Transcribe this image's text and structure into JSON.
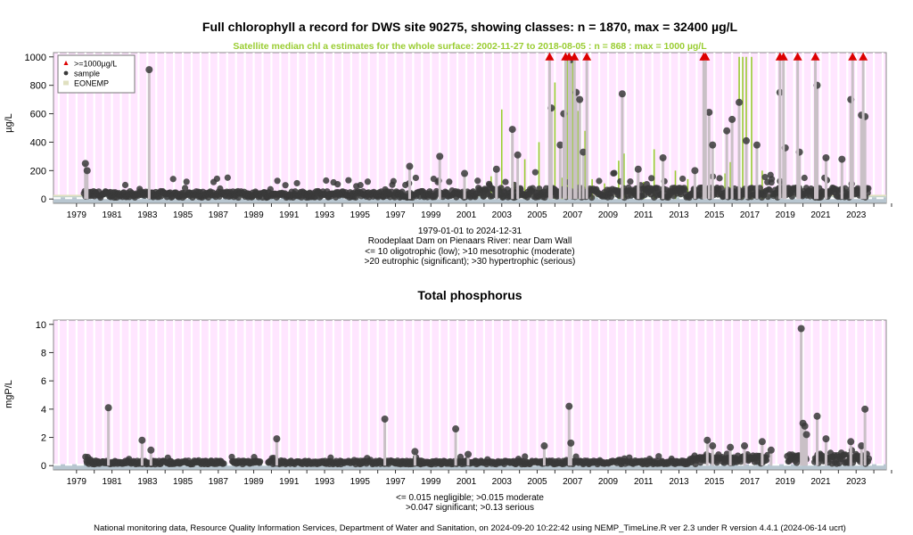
{
  "chart_data": [
    {
      "type": "scatter",
      "title": "Full chlorophyll a record for DWS site 90275, showing classes: n = 1870, max = 32400 µg/L",
      "subtitle": "Satellite median chl a estimates for the whole surface: 2002-11-27 to 2018-08-05 : n = 868 : max = 1000 µg/L",
      "ylabel": "µg/L",
      "xlim": [
        1978.2,
        2025.2
      ],
      "ylim": [
        -30,
        1030
      ],
      "x_ticks": [
        "1979",
        "1981",
        "1983",
        "1985",
        "1987",
        "1989",
        "1991",
        "1993",
        "1995",
        "1997",
        "1999",
        "2001",
        "2003",
        "2005",
        "2007",
        "2009",
        "2011",
        "2013",
        "2015",
        "2017",
        "2019",
        "2021",
        "2023"
      ],
      "y_ticks": [
        0,
        200,
        400,
        600,
        800,
        1000
      ],
      "legend": {
        "position": "top-left",
        "entries": [
          ">=1000µg/L",
          "sample",
          "EONEMP"
        ]
      },
      "colors": {
        "panel_bg": "#ffe6ff",
        "sample": "#3a3a3a",
        "exceed": "#dd0000",
        "eonemp": "#99cc33",
        "stem": "#c9c0c6",
        "bands": [
          "#b8c6d0",
          "#c3d4cc",
          "#e0e0c0"
        ]
      },
      "series": [
        {
          "name": ">=1000µg/L",
          "x": [
            2006.2,
            2007.1,
            2007.3,
            2007.6,
            2008.3,
            2014.9,
            2015.0,
            2019.2,
            2019.4,
            2020.2,
            2021.2,
            2023.3,
            2023.9
          ],
          "y": [
            1000,
            1000,
            1000,
            1000,
            1000,
            1000,
            1000,
            1000,
            1000,
            1000,
            1000,
            1000,
            1000
          ]
        },
        {
          "name": "sample",
          "x": [
            1980.0,
            1980.1,
            1983.6,
            1998.3,
            2000.0,
            2001.4,
            2003.2,
            2004.1,
            2004.4,
            2006.3,
            2006.8,
            2007.0,
            2007.4,
            2007.7,
            2007.9,
            2008.1,
            2010.3,
            2011.2,
            2012.6,
            2014.4,
            2015.2,
            2015.4,
            2016.2,
            2016.5,
            2016.9,
            2017.3,
            2017.9,
            2019.2,
            2019.5,
            2020.3,
            2021.3,
            2021.8,
            2022.7,
            2023.2,
            2023.8,
            2024.0
          ],
          "y": [
            250,
            200,
            910,
            230,
            300,
            180,
            210,
            490,
            310,
            640,
            380,
            600,
            980,
            750,
            700,
            330,
            740,
            210,
            290,
            200,
            610,
            380,
            480,
            560,
            680,
            410,
            380,
            750,
            360,
            330,
            800,
            290,
            280,
            700,
            590,
            580
          ]
        },
        {
          "name": "EONEMP",
          "x": [
            2002.9,
            2003.5,
            2004.2,
            2004.8,
            2005.6,
            2006.2,
            2006.5,
            2006.9,
            2007.2,
            2007.5,
            2007.8,
            2008.2,
            2008.6,
            2009.3,
            2010.1,
            2010.4,
            2011.5,
            2012.1,
            2013.3,
            2014.0,
            2016.1,
            2016.4,
            2016.9,
            2017.1,
            2017.3,
            2017.6,
            2018.2
          ],
          "y": [
            160,
            630,
            120,
            280,
            400,
            1000,
            820,
            150,
            1000,
            970,
            620,
            480,
            140,
            110,
            270,
            320,
            120,
            350,
            200,
            140,
            180,
            260,
            1000,
            1000,
            1000,
            1000,
            200
          ]
        }
      ]
    },
    {
      "type": "scatter",
      "title": "Total phosphorus",
      "ylabel": "mgP/L",
      "xlim": [
        1978.2,
        2025.2
      ],
      "ylim": [
        -0.3,
        10.3
      ],
      "x_ticks": [
        "1979",
        "1981",
        "1983",
        "1985",
        "1987",
        "1989",
        "1991",
        "1993",
        "1995",
        "1997",
        "1999",
        "2001",
        "2003",
        "2005",
        "2007",
        "2009",
        "2011",
        "2013",
        "2015",
        "2017",
        "2019",
        "2021",
        "2023"
      ],
      "y_ticks": [
        0,
        2,
        4,
        6,
        8,
        10
      ],
      "colors": {
        "panel_bg": "#ffe6ff",
        "sample": "#3a3a3a",
        "stem": "#c9c0c6"
      },
      "series": [
        {
          "name": "sample",
          "x": [
            1981.3,
            1983.2,
            1983.7,
            1990.8,
            1996.9,
            1998.6,
            2000.9,
            2001.6,
            2005.9,
            2007.3,
            2007.4,
            2015.1,
            2015.4,
            2016.4,
            2017.2,
            2018.2,
            2018.7,
            2020.4,
            2020.5,
            2020.6,
            2020.7,
            2021.3,
            2021.8,
            2023.2,
            2023.8,
            2024.0
          ],
          "y": [
            4.1,
            1.8,
            1.1,
            1.9,
            3.3,
            1.0,
            2.6,
            0.8,
            1.4,
            4.2,
            1.6,
            1.8,
            1.4,
            1.3,
            1.4,
            1.7,
            1.1,
            9.7,
            3.0,
            2.8,
            2.2,
            3.5,
            1.9,
            1.7,
            1.4,
            4.0
          ]
        }
      ]
    }
  ],
  "captions": {
    "date_range": "1979-01-01 to 2024-12-31",
    "site": "Roodeplaat Dam on Pienaars River: near Dam Wall",
    "chl_class_line1": "<= 10 oligotrophic (low); >10 mesotrophic (moderate)",
    "chl_class_line2": ">20 eutrophic (significant); >30 hypertrophic (serious)",
    "tp_class_line1": "<= 0.015 negligible; >0.015 moderate",
    "tp_class_line2": ">0.047 significant; >0.13 serious"
  },
  "footer": "National monitoring data, Resource Quality Information Services, Department of Water and Sanitation, on 2024-09-20 10:22:42 using NEMP_TimeLine.R ver 2.3 under R version 4.4.1 (2024-06-14 ucrt)"
}
